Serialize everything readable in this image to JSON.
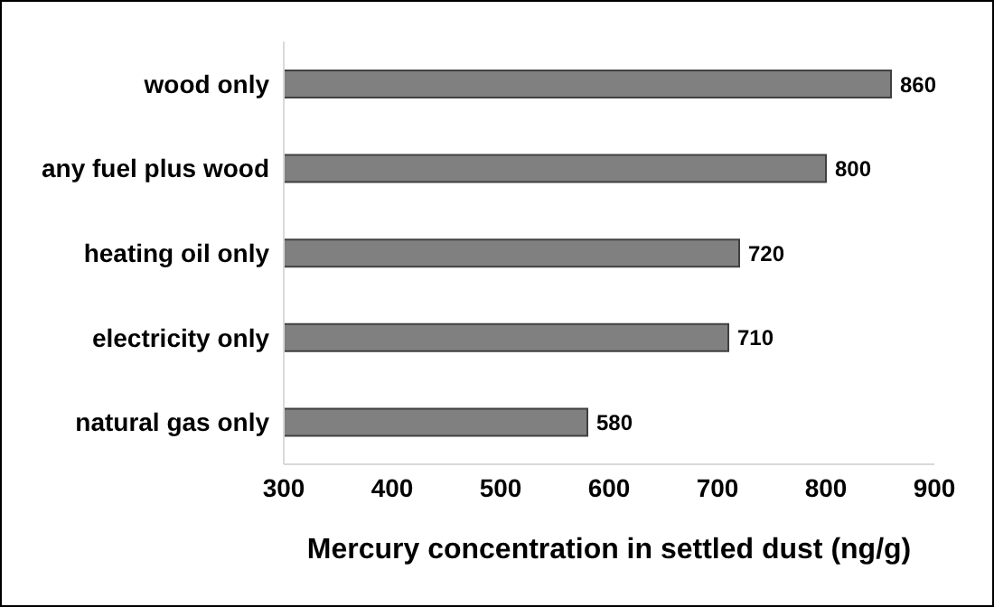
{
  "chart_data": {
    "type": "bar",
    "orientation": "horizontal",
    "xlabel": "Mercury concentration in settled dust (ng/g)",
    "categories": [
      "wood only",
      "any fuel plus wood",
      "heating oil only",
      "electricity only",
      "natural gas only"
    ],
    "values": [
      860,
      800,
      720,
      710,
      580
    ],
    "color": "#808080",
    "xlim": [
      300,
      900
    ],
    "xticks": [
      300,
      400,
      500,
      600,
      700,
      800,
      900
    ],
    "grid": false,
    "data_labels": true
  }
}
